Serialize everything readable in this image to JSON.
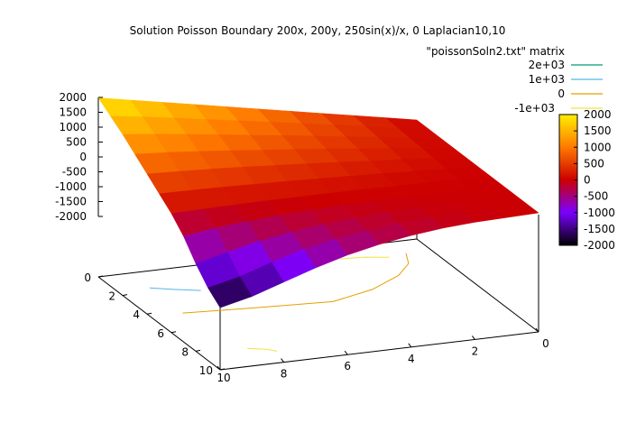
{
  "chart_data": {
    "type": "surface3d",
    "title": "Solution Poisson Boundary 200x, 200y, 250sin(x)/x, 0 Laplacian10,10",
    "series": [
      {
        "name": "\"poissonSoln2.txt\" matrix",
        "kind": "surface"
      }
    ],
    "contour_legend": [
      {
        "label": "2e+03",
        "color": "#009e73"
      },
      {
        "label": "1e+03",
        "color": "#56b4e9"
      },
      {
        "label": "0",
        "color": "#e69f00"
      },
      {
        "label": "-1e+03",
        "color": "#f0e442"
      }
    ],
    "z_ticks": [
      "2000",
      "1500",
      "1000",
      "500",
      "0",
      "-500",
      "-1000",
      "-1500",
      "-2000"
    ],
    "left_axis_ticks": [
      "0",
      "2",
      "4",
      "6",
      "8",
      "10"
    ],
    "front_axis_ticks": [
      "10",
      "8",
      "6",
      "4",
      "2",
      "0"
    ],
    "colorbar_ticks": [
      "2000",
      "1500",
      "1000",
      "500",
      "0",
      "-500",
      "-1000",
      "-1500",
      "-2000"
    ],
    "zlim": [
      -2000,
      2000
    ],
    "grid_size": 11,
    "z_matrix": [
      [
        2000,
        1800,
        1600,
        1400,
        1200,
        1000,
        800,
        600,
        400,
        200,
        0
      ],
      [
        1700,
        1550,
        1380,
        1210,
        1040,
        870,
        700,
        520,
        350,
        170,
        0
      ],
      [
        1400,
        1280,
        1150,
        1010,
        870,
        730,
        590,
        440,
        300,
        150,
        0
      ],
      [
        1050,
        980,
        890,
        790,
        680,
        580,
        470,
        350,
        240,
        120,
        0
      ],
      [
        700,
        660,
        610,
        550,
        480,
        410,
        330,
        250,
        170,
        80,
        0
      ],
      [
        350,
        340,
        320,
        290,
        260,
        220,
        180,
        140,
        90,
        40,
        0
      ],
      [
        0,
        20,
        40,
        50,
        50,
        50,
        40,
        30,
        20,
        10,
        0
      ],
      [
        -450,
        -300,
        -200,
        -130,
        -80,
        -40,
        -20,
        -10,
        0,
        0,
        0
      ],
      [
        -1050,
        -800,
        -550,
        -380,
        -250,
        -160,
        -90,
        -40,
        -20,
        -10,
        0
      ],
      [
        -1550,
        -1300,
        -950,
        -650,
        -430,
        -280,
        -160,
        -80,
        -40,
        -20,
        0
      ],
      [
        -1900,
        -1650,
        -1300,
        -950,
        -650,
        -420,
        -250,
        -130,
        -60,
        -30,
        0
      ]
    ]
  }
}
